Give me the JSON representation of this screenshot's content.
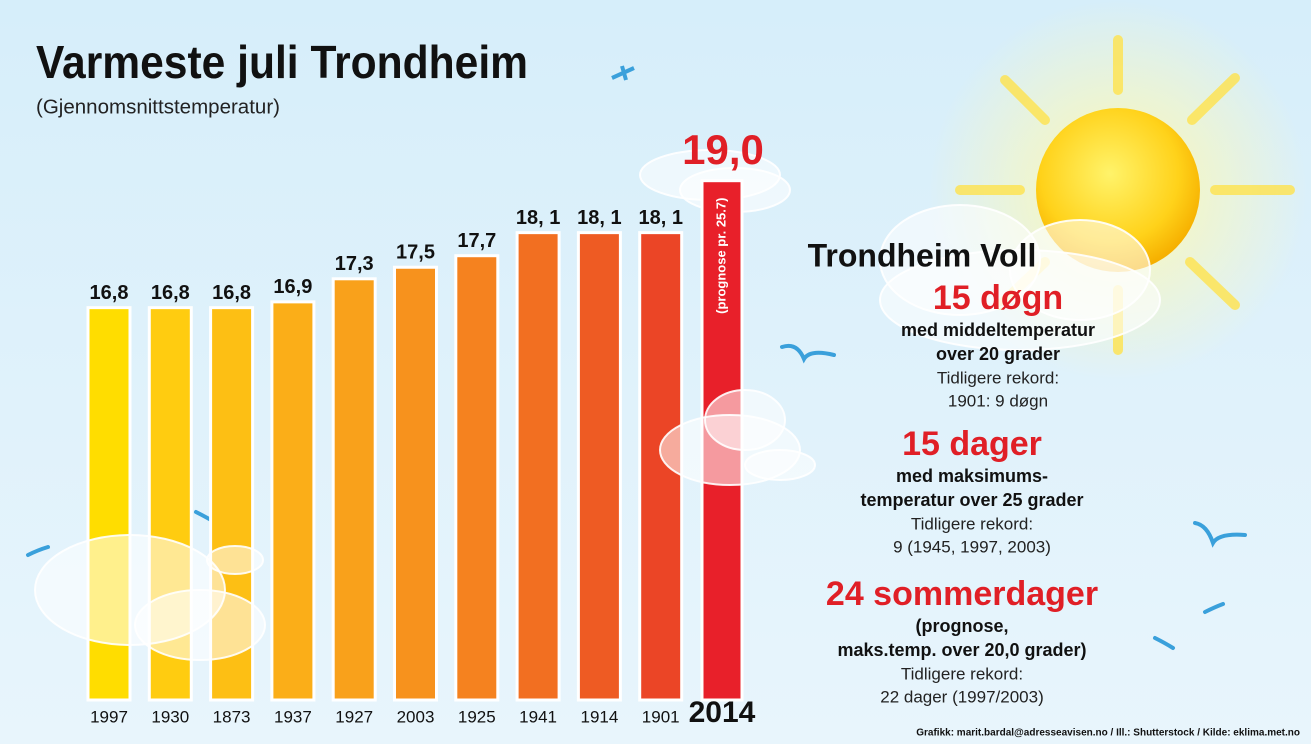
{
  "chart_data": {
    "type": "bar",
    "title": "Varmeste juli Trondheim",
    "subtitle": "(Gjennomsnittstemperatur)",
    "categories": [
      "1997",
      "1930",
      "1873",
      "1937",
      "1927",
      "2003",
      "1925",
      "1941",
      "1914",
      "1901",
      "2014"
    ],
    "values": [
      16.8,
      16.8,
      16.8,
      16.9,
      17.3,
      17.5,
      17.7,
      18.1,
      18.1,
      18.1,
      19.0
    ],
    "value_labels": [
      "16,8",
      "16,8",
      "16,8",
      "16,9",
      "17,3",
      "17,5",
      "17,7",
      "18, 1",
      "18, 1",
      "18, 1",
      "19,0"
    ],
    "colors": [
      "#ffdd00",
      "#ffcc10",
      "#fdbf14",
      "#fbae18",
      "#f9a11b",
      "#f7921d",
      "#f5821f",
      "#f26f21",
      "#ee5b23",
      "#eb4526",
      "#e8202a"
    ],
    "ylim": [
      10,
      20
    ],
    "annotation": "(prognose pr. 25.7)"
  },
  "panel": {
    "heading": "Trondheim Voll",
    "blocks": [
      {
        "headline": "15 døgn",
        "lines": [
          "med middeltemperatur",
          "over 20 grader"
        ],
        "note": [
          "Tidligere rekord:",
          "1901:  9 døgn"
        ]
      },
      {
        "headline": "15 dager",
        "lines": [
          "med maksimums-",
          "temperatur over 25 grader"
        ],
        "note": [
          "Tidligere rekord:",
          "9 (1945, 1997, 2003)"
        ]
      },
      {
        "headline": "24 sommerdager",
        "lines": [
          "(prognose,",
          "maks.temp. over 20,0 grader)"
        ],
        "note": [
          "Tidligere rekord:",
          "22 dager (1997/2003)"
        ]
      }
    ]
  },
  "credit": "Grafikk: marit.bardal@adresseavisen.no / Ill.: Shutterstock / Kilde: eklima.met.no"
}
